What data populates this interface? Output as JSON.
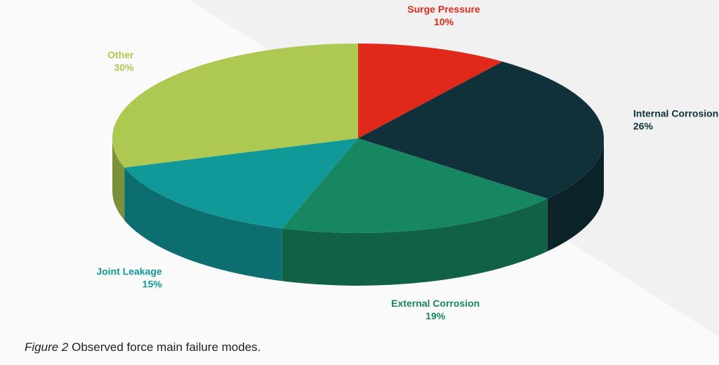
{
  "chart_data": {
    "type": "pie",
    "categories": [
      "Surge Pressure",
      "Internal Corrosion",
      "External Corrosion",
      "Joint Leakage",
      "Other"
    ],
    "values": [
      10,
      26,
      19,
      15,
      30
    ],
    "value_labels": [
      "10%",
      "26%",
      "19%",
      "15%",
      "30%"
    ],
    "colors": [
      "#e0281b",
      "#10313a",
      "#178762",
      "#11999a",
      "#aec952"
    ],
    "caption": {
      "label": "Figure 2",
      "text": "Observed force main failure modes."
    }
  }
}
